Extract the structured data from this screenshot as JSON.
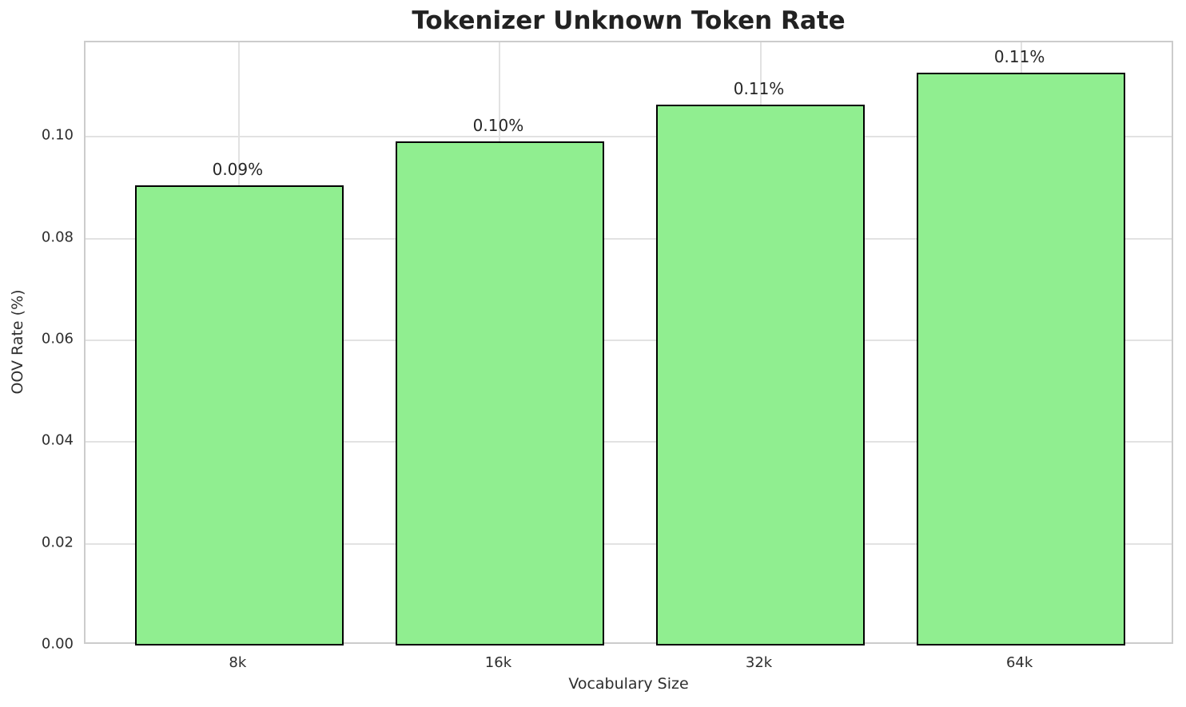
{
  "chart_data": {
    "type": "bar",
    "title": "Tokenizer Unknown Token Rate",
    "categories": [
      "8k",
      "16k",
      "32k",
      "64k"
    ],
    "values": [
      0.0905,
      0.0991,
      0.1064,
      0.1127
    ],
    "bar_labels": [
      "0.09%",
      "0.10%",
      "0.11%",
      "0.11%"
    ],
    "xlabel": "Vocabulary Size",
    "ylabel": "OOV Rate (%)",
    "ylim": [
      0,
      0.1186
    ],
    "yticks": [
      0.0,
      0.02,
      0.04,
      0.06,
      0.08,
      0.1
    ],
    "ytick_labels": [
      "0.00",
      "0.02",
      "0.04",
      "0.06",
      "0.08",
      "0.10"
    ],
    "grid": true,
    "legend": "none",
    "bar_color": "#90EE90",
    "bar_edge_color": "#000000",
    "gridline_color": "#e2e2e2",
    "spine_color": "#cccccc",
    "text_color": "#262626",
    "background_color": "#ffffff"
  }
}
